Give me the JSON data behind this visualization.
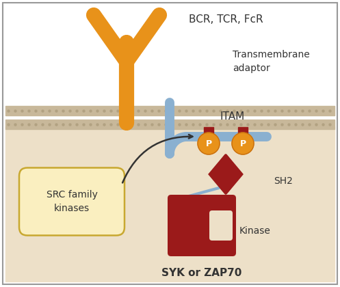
{
  "bg_color": "#ffffff",
  "membrane_color": "#c8b89a",
  "membrane_dot_color": "#b0a080",
  "cytoplasm_color": "#ede0c8",
  "receptor_color": "#e8921a",
  "adaptor_color": "#8ab0d0",
  "sh2_color": "#9b1a1a",
  "kinase_color": "#9b1a1a",
  "itam_bar_color": "#9b1a1a",
  "phospho_circle_color": "#e8921a",
  "phospho_text_color": "#ffffff",
  "src_box_color": "#faefc0",
  "src_box_edge": "#c8a830",
  "arrow_color": "#333333",
  "text_color": "#333333",
  "label_bcr": "BCR, TCR, FcR",
  "label_transmembrane": "Transmembrane\nadaptor",
  "label_itam": "ITAM",
  "label_sh2": "SH2",
  "label_kinase": "Kinase",
  "label_syk": "SYK or ZAP70",
  "label_src": "SRC family\nkinases",
  "border_color": "#999999",
  "receptor_outline": "#c87010"
}
